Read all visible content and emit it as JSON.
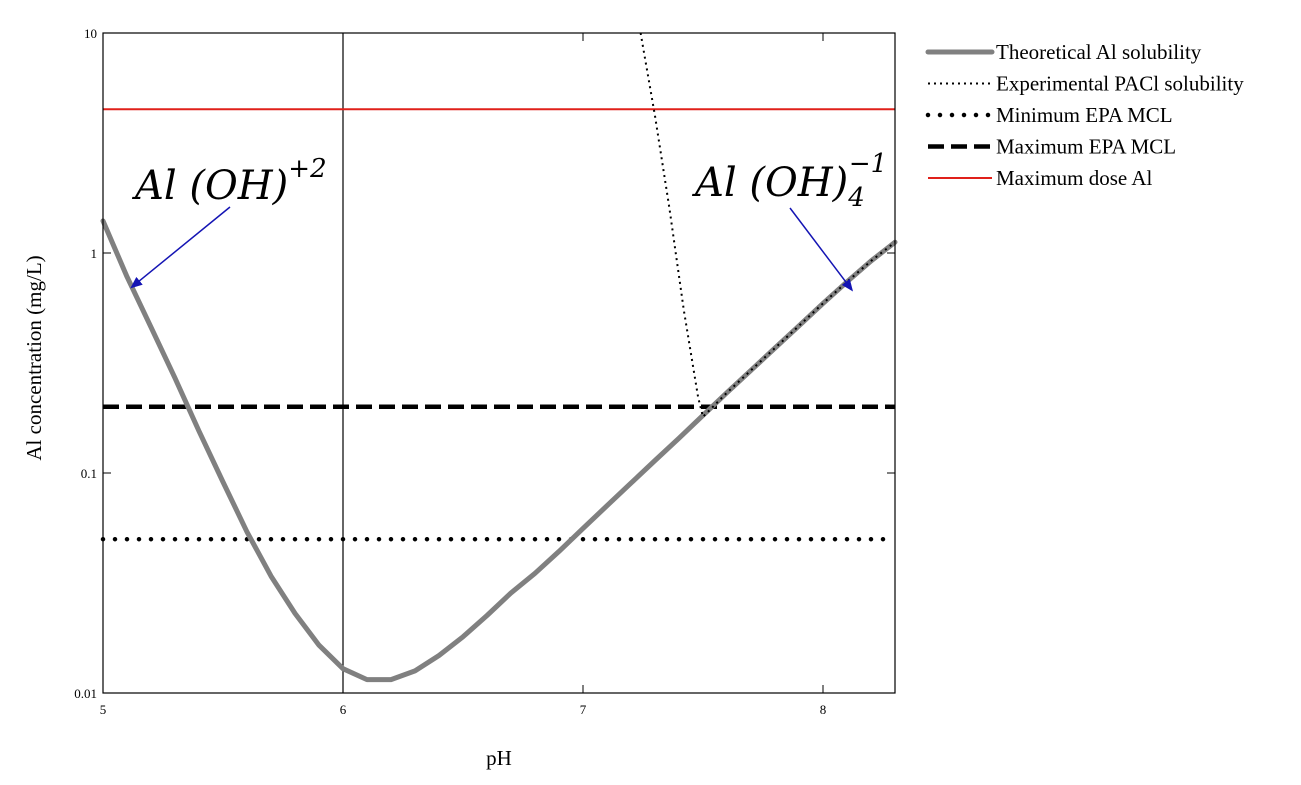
{
  "chart_data": {
    "type": "line",
    "xlabel": "pH",
    "ylabel": "Al concentration (mg/L)",
    "xlim": [
      5,
      8.3
    ],
    "ylim": [
      0.01,
      10
    ],
    "yscale": "log",
    "grid": false,
    "legend_position": "right",
    "x_ticks": [
      "5",
      "6",
      "7",
      "8"
    ],
    "x_tick_values": [
      5,
      6,
      7,
      8
    ],
    "y_ticks": [
      "0.01",
      "0.1",
      "1",
      "10"
    ],
    "y_tick_values": [
      0.01,
      0.1,
      1,
      10
    ],
    "vertical_reference_x": 6,
    "series": [
      {
        "name": "Theoretical Al solubility",
        "color": "#808080",
        "style": "solid-thick",
        "x": [
          5.0,
          5.1,
          5.2,
          5.3,
          5.4,
          5.5,
          5.6,
          5.7,
          5.8,
          5.9,
          6.0,
          6.1,
          6.2,
          6.3,
          6.4,
          6.5,
          6.6,
          6.7,
          6.8,
          6.9,
          7.0,
          7.1,
          7.2,
          7.3,
          7.4,
          7.5,
          7.6,
          7.7,
          7.8,
          7.9,
          8.0,
          8.1,
          8.2,
          8.3
        ],
        "y": [
          1.4,
          0.78,
          0.46,
          0.27,
          0.155,
          0.091,
          0.054,
          0.034,
          0.023,
          0.0165,
          0.0129,
          0.0115,
          0.0115,
          0.0126,
          0.0148,
          0.018,
          0.0225,
          0.0285,
          0.035,
          0.044,
          0.056,
          0.071,
          0.09,
          0.114,
          0.144,
          0.183,
          0.232,
          0.293,
          0.37,
          0.467,
          0.59,
          0.74,
          0.92,
          1.12
        ]
      },
      {
        "name": "Experimental PACl solubility",
        "color": "#000000",
        "style": "dotted-thin",
        "x": [
          7.24,
          7.3,
          7.36,
          7.42,
          7.48,
          7.5,
          7.6,
          7.7,
          7.8,
          7.9,
          8.0,
          8.1,
          8.2,
          8.3
        ],
        "y": [
          10.0,
          4.2,
          1.6,
          0.55,
          0.22,
          0.18,
          0.232,
          0.293,
          0.37,
          0.467,
          0.59,
          0.74,
          0.92,
          1.12
        ]
      },
      {
        "name": "Minimum EPA MCL",
        "color": "#000000",
        "style": "dotted-thick",
        "x": [
          5,
          8.3
        ],
        "y": [
          0.05,
          0.05
        ]
      },
      {
        "name": "Maximum EPA MCL",
        "color": "#000000",
        "style": "dashed-thick",
        "x": [
          5,
          8.3
        ],
        "y": [
          0.2,
          0.2
        ]
      },
      {
        "name": "Maximum dose Al",
        "color": "#e0201a",
        "style": "solid",
        "x": [
          5,
          8.3
        ],
        "y": [
          4.5,
          4.5
        ]
      }
    ],
    "annotations": [
      {
        "text": "Al (OH)",
        "superscript": "+2",
        "subscript": "",
        "arrow_to": [
          5.12,
          0.7
        ],
        "arrow_color": "#1414b4"
      },
      {
        "text": "Al (OH)",
        "superscript": "−1",
        "subscript": "4",
        "arrow_to": [
          8.12,
          0.68
        ],
        "arrow_color": "#1414b4"
      }
    ]
  }
}
